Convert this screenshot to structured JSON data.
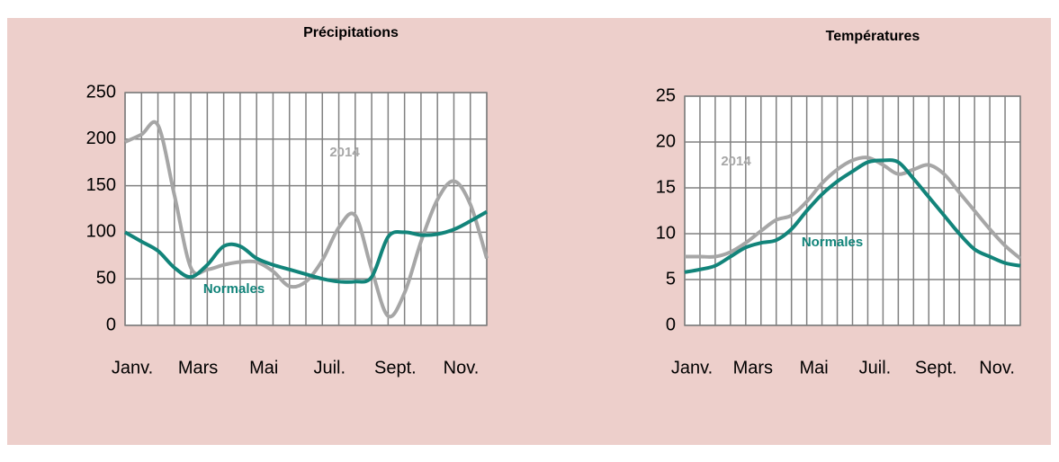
{
  "chart_data": [
    {
      "type": "line",
      "title": "Précipitations",
      "categories": [
        "Janv.",
        null,
        null,
        null,
        "Mars",
        null,
        null,
        null,
        "Mai",
        null,
        null,
        null,
        "Juil.",
        null,
        null,
        null,
        "Sept.",
        null,
        null,
        null,
        "Nov.",
        null,
        null
      ],
      "series": [
        {
          "name": "2014",
          "color": "#a6a6a6",
          "values": [
            197,
            205,
            215,
            140,
            62,
            60,
            65,
            68,
            68,
            58,
            42,
            47,
            70,
            105,
            118,
            60,
            10,
            35,
            90,
            135,
            155,
            130,
            72
          ]
        },
        {
          "name": "Normales",
          "color": "#12847a",
          "values": [
            100,
            90,
            80,
            62,
            52,
            65,
            85,
            85,
            72,
            65,
            60,
            55,
            50,
            47,
            47,
            52,
            95,
            100,
            97,
            98,
            103,
            112,
            122
          ]
        }
      ],
      "ylim": [
        0,
        250
      ],
      "yticks": [
        0,
        50,
        100,
        150,
        200,
        250
      ],
      "grid": true
    },
    {
      "type": "line",
      "title": "Températures",
      "categories": [
        "Janv.",
        null,
        null,
        null,
        "Mars",
        null,
        null,
        null,
        "Mai",
        null,
        null,
        null,
        "Juil.",
        null,
        null,
        null,
        "Sept.",
        null,
        null,
        null,
        "Nov.",
        null,
        null
      ],
      "series": [
        {
          "name": "2014",
          "color": "#a6a6a6",
          "values": [
            7.5,
            7.5,
            7.5,
            8,
            9,
            10.3,
            11.5,
            12,
            13.5,
            15.5,
            17,
            18,
            18.3,
            17.5,
            16.5,
            17,
            17.5,
            16.5,
            14.5,
            12.5,
            10.5,
            8.7,
            7.3
          ]
        },
        {
          "name": "Normales",
          "color": "#12847a",
          "values": [
            5.8,
            6.1,
            6.5,
            7.5,
            8.5,
            9,
            9.3,
            10.5,
            12.5,
            14.3,
            15.7,
            16.8,
            17.8,
            18,
            17.8,
            16,
            14,
            12,
            10,
            8.3,
            7.5,
            6.8,
            6.5
          ]
        }
      ],
      "ylim": [
        0,
        25
      ],
      "yticks": [
        0,
        5,
        10,
        15,
        20,
        25
      ],
      "grid": true
    }
  ]
}
